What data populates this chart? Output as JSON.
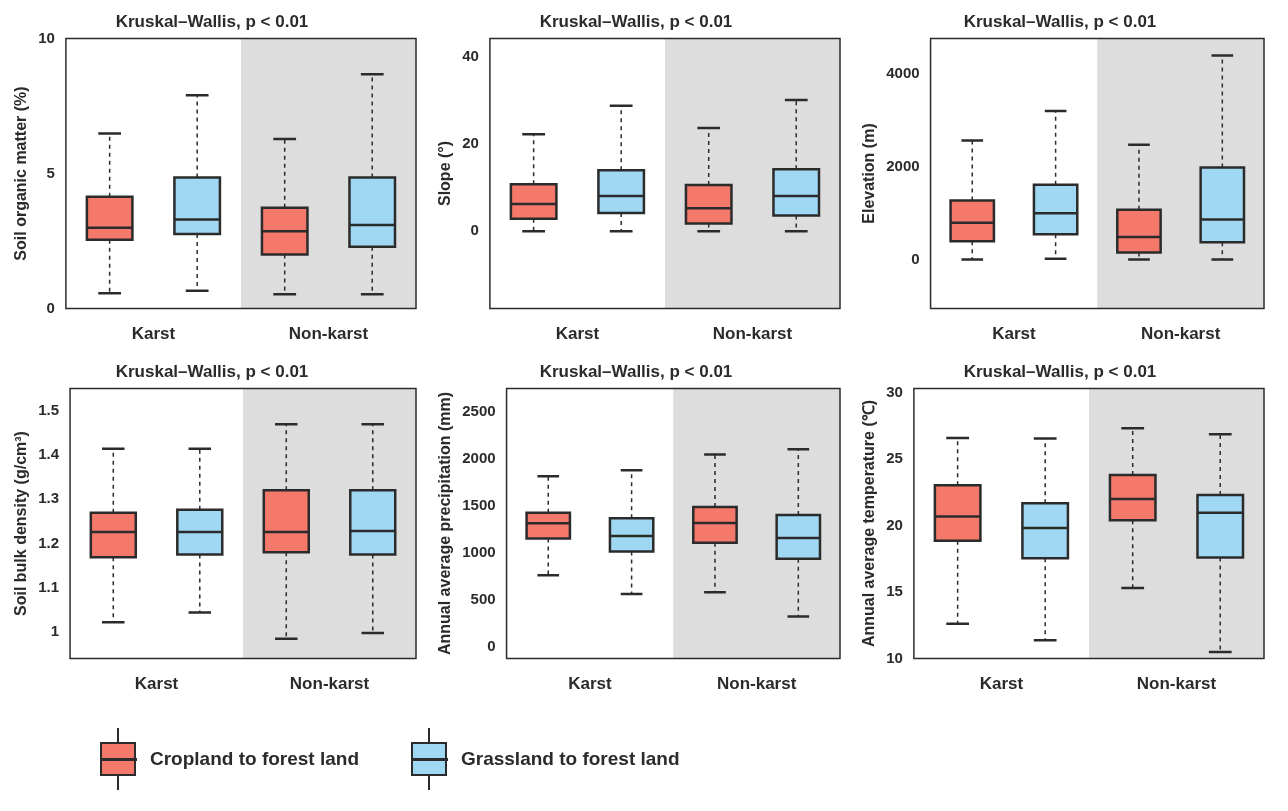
{
  "chart_data": [
    {
      "type": "box",
      "title": "Kruskal–Wallis, p < 0.01",
      "ylabel": "Soil organic matter (%)",
      "categories": [
        "Karst",
        "Non-karst"
      ],
      "ylim": [
        0,
        10
      ],
      "yticks": [
        0,
        5,
        10
      ],
      "legend": "bottom",
      "bands": [
        {
          "axis": "x",
          "from": "Non-karst",
          "to": "Non-karst",
          "color": "#dcdddc"
        }
      ],
      "series": [
        {
          "name": "Cropland to forest land",
          "color": "#f4796b",
          "boxes": [
            {
              "low": 0.57,
              "q1": 2.55,
              "median": 2.99,
              "q3": 4.14,
              "high": 6.48
            },
            {
              "low": 0.53,
              "q1": 2.0,
              "median": 2.86,
              "q3": 3.73,
              "high": 6.28
            }
          ]
        },
        {
          "name": "Grassland to forest land",
          "color": "#a0d8f4",
          "boxes": [
            {
              "low": 0.66,
              "q1": 2.76,
              "median": 3.3,
              "q3": 4.85,
              "high": 7.9
            },
            {
              "low": 0.53,
              "q1": 2.29,
              "median": 3.09,
              "q3": 4.85,
              "high": 8.67
            }
          ]
        }
      ]
    },
    {
      "type": "box",
      "title": "Kruskal–Wallis, p < 0.01",
      "ylabel": "Slope (°)",
      "categories": [
        "Karst",
        "Non-karst"
      ],
      "ylim": [
        -17.7,
        44.2
      ],
      "yticks": [
        0,
        20,
        40
      ],
      "bands": [
        {
          "axis": "x",
          "from": "Non-karst",
          "to": "Non-karst",
          "color": "#dcdddc"
        }
      ],
      "series": [
        {
          "color": "#f4796b",
          "boxes": [
            {
              "low": 0,
              "q1": 2.9,
              "median": 6.25,
              "q3": 10.8,
              "high": 22.25
            },
            {
              "low": 0,
              "q1": 1.8,
              "median": 5.3,
              "q3": 10.6,
              "high": 23.7
            }
          ]
        },
        {
          "color": "#a0d8f4",
          "boxes": [
            {
              "low": 0,
              "q1": 4.2,
              "median": 8.1,
              "q3": 14,
              "high": 28.75
            },
            {
              "low": 0,
              "q1": 3.6,
              "median": 8.1,
              "q3": 14.2,
              "high": 30.1
            }
          ]
        }
      ]
    },
    {
      "type": "box",
      "title": "Kruskal–Wallis, p < 0.01",
      "ylabel": "Elevation (m)",
      "categories": [
        "Karst",
        "Non-karst"
      ],
      "ylim": [
        -1060,
        4760
      ],
      "yticks": [
        0,
        2000,
        4000
      ],
      "bands": [
        {
          "axis": "x",
          "from": "Non-karst",
          "to": "Non-karst",
          "color": "#dcdddc"
        }
      ],
      "series": [
        {
          "color": "#f4796b",
          "boxes": [
            {
              "low": 0,
              "q1": 391,
              "median": 789,
              "q3": 1266,
              "high": 2562
            },
            {
              "low": 0,
              "q1": 148,
              "median": 484,
              "q3": 1070,
              "high": 2469
            }
          ]
        },
        {
          "color": "#a0d8f4",
          "boxes": [
            {
              "low": 16,
              "q1": 539,
              "median": 992,
              "q3": 1609,
              "high": 3195
            },
            {
              "low": 0,
              "q1": 367,
              "median": 859,
              "q3": 1977,
              "high": 4390
            }
          ]
        }
      ]
    },
    {
      "type": "box",
      "title": "Kruskal–Wallis, p < 0.01",
      "ylabel": "Soil bulk density (g/cm³)",
      "categories": [
        "Karst",
        "Non-karst"
      ],
      "ylim": [
        0.94,
        1.55
      ],
      "yticks": [
        1,
        1.1,
        1.2,
        1.3,
        1.4,
        1.5
      ],
      "bands": [
        {
          "axis": "x",
          "from": "Non-karst",
          "to": "Non-karst",
          "color": "#dcdddc"
        }
      ],
      "series": [
        {
          "color": "#f4796b",
          "boxes": [
            {
              "low": 1.022,
              "q1": 1.169,
              "median": 1.226,
              "q3": 1.269,
              "high": 1.414
            },
            {
              "low": 0.985,
              "q1": 1.18,
              "median": 1.226,
              "q3": 1.32,
              "high": 1.469
            }
          ]
        },
        {
          "color": "#a0d8f4",
          "boxes": [
            {
              "low": 1.044,
              "q1": 1.175,
              "median": 1.226,
              "q3": 1.276,
              "high": 1.414
            },
            {
              "low": 0.998,
              "q1": 1.175,
              "median": 1.228,
              "q3": 1.32,
              "high": 1.469
            }
          ]
        }
      ]
    },
    {
      "type": "box",
      "title": "Kruskal–Wallis, p < 0.01",
      "ylabel": "Annual average precipitation (mm)",
      "categories": [
        "Karst",
        "Non-karst"
      ],
      "ylim": [
        -130,
        2745
      ],
      "yticks": [
        0,
        500,
        1000,
        1500,
        2000,
        2500
      ],
      "bands": [
        {
          "axis": "x",
          "from": "Non-karst",
          "to": "Non-karst",
          "color": "#dcdddc"
        }
      ],
      "series": [
        {
          "color": "#f4796b",
          "boxes": [
            {
              "low": 757,
              "q1": 1149,
              "median": 1310,
              "q3": 1421,
              "high": 1809
            },
            {
              "low": 576,
              "q1": 1102,
              "median": 1313,
              "q3": 1482,
              "high": 2043
            }
          ]
        },
        {
          "color": "#a0d8f4",
          "boxes": [
            {
              "low": 557,
              "q1": 1010,
              "median": 1175,
              "q3": 1363,
              "high": 1874
            },
            {
              "low": 319,
              "q1": 933,
              "median": 1152,
              "q3": 1398,
              "high": 2097
            }
          ]
        }
      ]
    },
    {
      "type": "box",
      "title": "Kruskal–Wallis, p < 0.01",
      "ylabel": "Annual average temperature (℃)",
      "categories": [
        "Karst",
        "Non-karst"
      ],
      "ylim": [
        10,
        30.3
      ],
      "yticks": [
        10,
        15,
        20,
        25,
        30
      ],
      "bands": [
        {
          "axis": "x",
          "from": "Non-karst",
          "to": "Non-karst",
          "color": "#dcdddc"
        }
      ],
      "series": [
        {
          "color": "#f4796b",
          "boxes": [
            {
              "low": 12.62,
              "q1": 18.86,
              "median": 20.68,
              "q3": 23.03,
              "high": 26.57
            },
            {
              "low": 15.3,
              "q1": 20.4,
              "median": 22.0,
              "q3": 23.8,
              "high": 27.3
            }
          ]
        },
        {
          "color": "#a0d8f4",
          "boxes": [
            {
              "low": 11.38,
              "q1": 17.54,
              "median": 19.81,
              "q3": 21.68,
              "high": 26.54
            },
            {
              "low": 10.5,
              "q1": 17.6,
              "median": 20.95,
              "q3": 22.3,
              "high": 26.86
            }
          ]
        }
      ]
    }
  ]
}
